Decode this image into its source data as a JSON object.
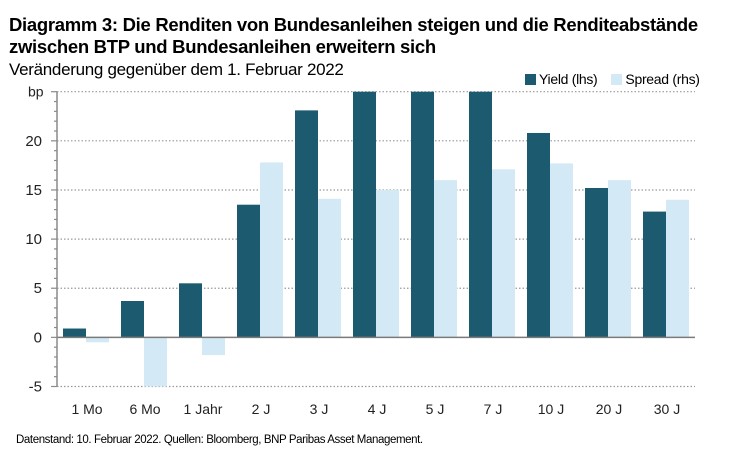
{
  "header": {
    "title_line1": "Diagramm 3: Die Renditen von Bundesanleihen steigen und die Renditeabstände",
    "title_line2": "zwischen BTP und Bundesanleihen erweitern sich",
    "subtitle": "Veränderung gegenüber dem 1. Februar 2022"
  },
  "footer": {
    "source": "Datenstand: 10. Februar 2022.  Quellen: Bloomberg, BNP Paribas Asset Management."
  },
  "colors": {
    "yield": "#1c5a70",
    "spread": "#d3e9f5",
    "grid": "#9a9a9a",
    "axis": "#8a8a8a"
  },
  "chart_data": {
    "type": "bar",
    "title": "Diagramm 3: Die Renditen von Bundesanleihen steigen und die Renditeabstände zwischen BTP und Bundesanleihen erweitern sich",
    "subtitle": "Veränderung gegenüber dem 1. Februar 2022",
    "xlabel": "",
    "ylabel": "bp",
    "categories": [
      "1 Mo",
      "6 Mo",
      "1 Jahr",
      "2 J",
      "3 J",
      "4 J",
      "5 J",
      "7 J",
      "10 J",
      "20 J",
      "30 J"
    ],
    "series": [
      {
        "name": "Yield (lhs)",
        "values": [
          0.9,
          3.7,
          5.5,
          13.5,
          23.1,
          25,
          25,
          25,
          20.8,
          15.2,
          12.8
        ],
        "note": "4 J, 5 J and 7 J bars are clipped at the top of the axis (>= 25)"
      },
      {
        "name": "Spread (rhs)",
        "values": [
          -0.5,
          -5.0,
          -1.8,
          17.8,
          14.1,
          15.0,
          16.0,
          17.1,
          17.7,
          16.0,
          14.0
        ]
      }
    ],
    "ylim": [
      -5,
      25
    ],
    "yticks": [
      {
        "value": 25,
        "label": "bp"
      },
      {
        "value": 20,
        "label": "20"
      },
      {
        "value": 15,
        "label": "15"
      },
      {
        "value": 10,
        "label": "10"
      },
      {
        "value": 5,
        "label": "5"
      },
      {
        "value": 0,
        "label": "0"
      },
      {
        "value": -5,
        "label": "-5"
      }
    ],
    "minor_tick_step": 1,
    "grid": true,
    "legend": {
      "position": "top-right",
      "entries": [
        "Yield (lhs)",
        "Spread (rhs)"
      ]
    }
  }
}
